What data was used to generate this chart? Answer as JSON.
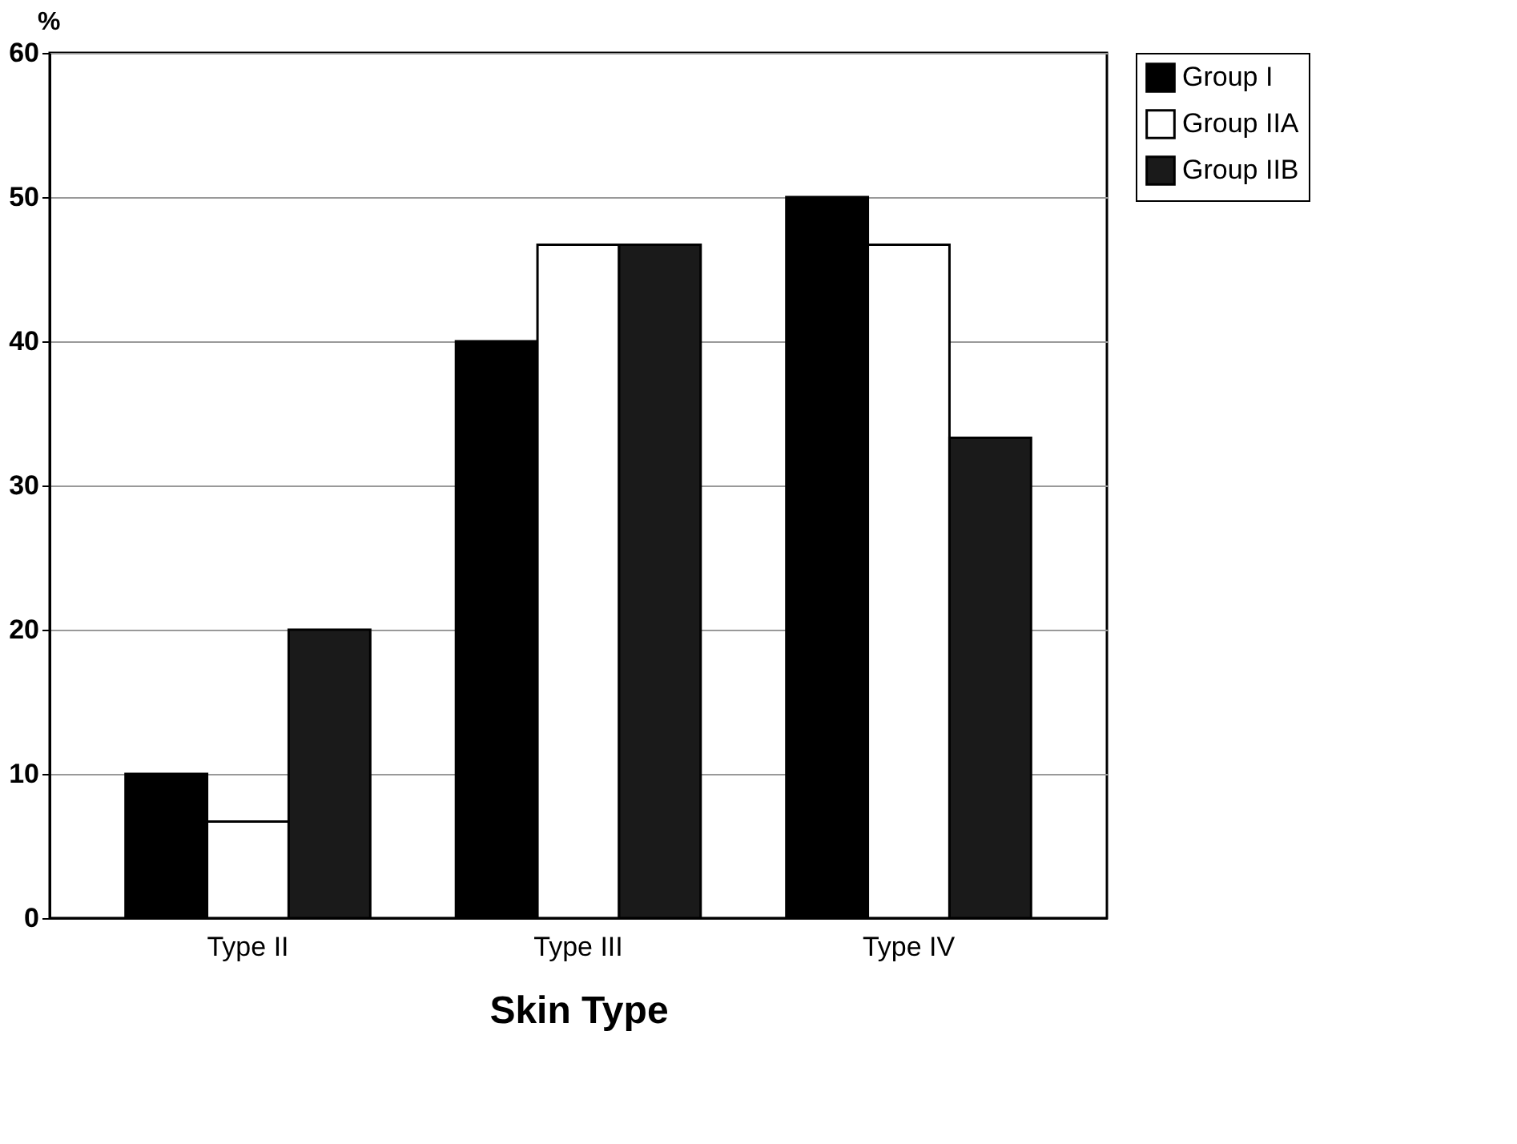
{
  "chart_data": {
    "type": "bar",
    "xlabel": "Skin Type",
    "ylabel": "%",
    "categories": [
      "Type II",
      "Type III",
      "Type IV"
    ],
    "series": [
      {
        "name": "Group I",
        "color": "#000000",
        "values": [
          10,
          40,
          50
        ]
      },
      {
        "name": "Group IIA",
        "color": "#ffffff",
        "values": [
          6.7,
          46.7,
          46.7
        ]
      },
      {
        "name": "Group IIB",
        "color": "#1a1a1a",
        "values": [
          20,
          46.7,
          33.3
        ]
      }
    ],
    "ylim": [
      0,
      60
    ],
    "yticks": [
      0,
      10,
      20,
      30,
      40,
      50,
      60
    ],
    "grid": "y",
    "legend": "right"
  }
}
